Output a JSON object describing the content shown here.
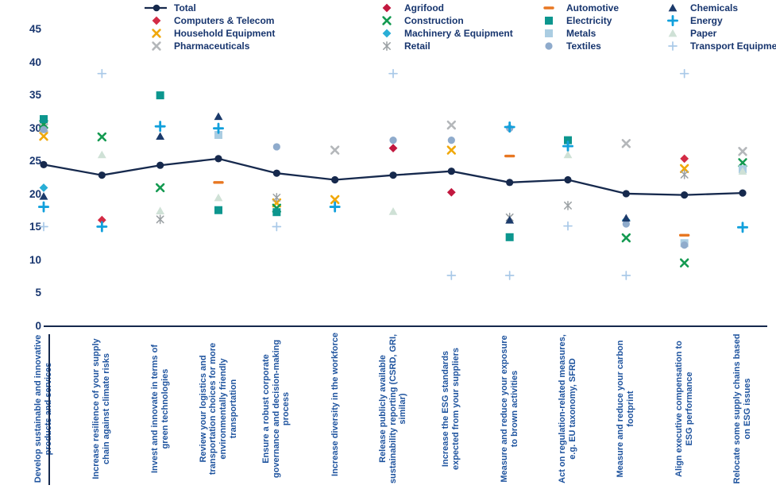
{
  "colors": {
    "axis": "#16294d",
    "tick_label": "#17356e",
    "category_label": "#1e539e",
    "legend_label": "#17356e"
  },
  "legend": {
    "columns": [
      [
        "total",
        "computers_telecom",
        "household_equipment",
        "pharmaceuticals"
      ],
      [
        "agrifood",
        "construction",
        "machinery_equipment",
        "retail"
      ],
      [
        "automotive",
        "electricity",
        "metals",
        "textiles"
      ],
      [
        "chemicals",
        "energy",
        "paper",
        "transport_equipment"
      ]
    ]
  },
  "chart_data": {
    "type": "scatter",
    "title": "",
    "xlabel": "",
    "ylabel": "",
    "grid": false,
    "legend_position": "top",
    "y_axis": {
      "min": 0,
      "max": 45,
      "tick_step": 5,
      "tick_labels": [
        0,
        5,
        10,
        15,
        20,
        25,
        30,
        35,
        40,
        45
      ]
    },
    "categories": [
      "Develop sustainable and innovative products and services",
      "Increase resilience of your supply chain against climate risks",
      "Invest and innovate in terms of green technologies",
      "Review your logistics and transportation choices for more environmentally friendly transportation",
      "Ensure a robust corporate governance and decision-making process",
      "Increase diversity in the workforce",
      "Release publicly available sustainability reporting (CSRD, GRI, similar)",
      "Increase the ESG standards expected from your suppliers",
      "Measure and reduce your exposure to brown activities",
      "Act on regulation-related measures, e.g. EU taxonomy, SFRD",
      "Measure and reduce your carbon footprint",
      "Align executive compensation to ESG performance",
      "Relocate some supply chains based on ESG issues"
    ],
    "series": [
      {
        "id": "total",
        "name": "Total",
        "marker": "line-circle",
        "color": "#16294d",
        "values": [
          24.5,
          22.9,
          24.4,
          25.4,
          23.2,
          22.2,
          22.9,
          23.5,
          21.8,
          22.2,
          20.1,
          19.9,
          20.2
        ]
      },
      {
        "id": "computers_telecom",
        "name": "Computers & Telecom",
        "marker": "diamond",
        "color": "#d32b45",
        "points": [
          [
            1,
            16.1
          ],
          [
            11,
            25.4
          ]
        ]
      },
      {
        "id": "agrifood",
        "name": "Agrifood",
        "marker": "diamond",
        "color": "#c2183f",
        "points": [
          [
            6,
            27.0
          ],
          [
            7,
            20.3
          ]
        ]
      },
      {
        "id": "household_equipment",
        "name": "Household Equipment",
        "marker": "x",
        "color": "#f0a80a",
        "points": [
          [
            0,
            28.8
          ],
          [
            4,
            18.7
          ],
          [
            5,
            19.2
          ],
          [
            7,
            26.7
          ],
          [
            11,
            23.9
          ]
        ]
      },
      {
        "id": "pharmaceuticals",
        "name": "Pharmaceuticals",
        "marker": "x",
        "color": "#b4b7ba",
        "points": [
          [
            0,
            30.1
          ],
          [
            5,
            26.7
          ],
          [
            7,
            30.5
          ],
          [
            10,
            27.7
          ],
          [
            12,
            26.5
          ]
        ]
      },
      {
        "id": "construction",
        "name": "Construction",
        "marker": "x",
        "color": "#149a51",
        "points": [
          [
            0,
            30.6
          ],
          [
            1,
            28.7
          ],
          [
            2,
            21.0
          ],
          [
            4,
            17.9
          ],
          [
            10,
            13.4
          ],
          [
            11,
            9.6
          ],
          [
            12,
            24.8
          ]
        ]
      },
      {
        "id": "machinery_equipment",
        "name": "Machinery & Equipment",
        "marker": "diamond",
        "color": "#29aed6",
        "points": [
          [
            0,
            21.0
          ],
          [
            10,
            16.1
          ]
        ]
      },
      {
        "id": "retail",
        "name": "Retail",
        "marker": "asterisk",
        "color": "#9ba1a4",
        "points": [
          [
            2,
            16.2
          ],
          [
            4,
            19.5
          ],
          [
            8,
            16.5
          ],
          [
            9,
            18.3
          ],
          [
            11,
            23.0
          ]
        ]
      },
      {
        "id": "automotive",
        "name": "Automotive",
        "marker": "dash",
        "color": "#e87722",
        "points": [
          [
            3,
            21.8
          ],
          [
            8,
            25.8
          ],
          [
            11,
            13.8
          ]
        ]
      },
      {
        "id": "electricity",
        "name": "Electricity",
        "marker": "square",
        "color": "#0c968e",
        "points": [
          [
            0,
            31.4
          ],
          [
            2,
            35.0
          ],
          [
            3,
            17.6
          ],
          [
            4,
            17.3
          ],
          [
            8,
            13.5
          ],
          [
            9,
            28.2
          ]
        ]
      },
      {
        "id": "metals",
        "name": "Metals",
        "marker": "square",
        "color": "#abcde2",
        "points": [
          [
            3,
            29.0
          ],
          [
            11,
            12.6
          ],
          [
            12,
            23.8
          ]
        ]
      },
      {
        "id": "textiles",
        "name": "Textiles",
        "marker": "circle",
        "color": "#8fabcc",
        "points": [
          [
            0,
            29.8
          ],
          [
            4,
            27.2
          ],
          [
            6,
            28.2
          ],
          [
            7,
            28.2
          ],
          [
            8,
            30.0
          ],
          [
            10,
            15.5
          ],
          [
            11,
            12.3
          ]
        ]
      },
      {
        "id": "chemicals",
        "name": "Chemicals",
        "marker": "triangle",
        "color": "#1b3a6b",
        "points": [
          [
            0,
            19.7
          ],
          [
            2,
            28.8
          ],
          [
            3,
            31.8
          ],
          [
            8,
            16.1
          ],
          [
            10,
            16.4
          ]
        ]
      },
      {
        "id": "energy",
        "name": "Energy",
        "marker": "plus",
        "color": "#11a0dc",
        "points": [
          [
            0,
            18.1
          ],
          [
            1,
            15.1
          ],
          [
            2,
            30.3
          ],
          [
            3,
            30.0
          ],
          [
            5,
            18.1
          ],
          [
            8,
            30.2
          ],
          [
            9,
            27.3
          ],
          [
            12,
            15.0
          ]
        ]
      },
      {
        "id": "paper",
        "name": "Paper",
        "marker": "triangle",
        "color": "#cfe1d6",
        "points": [
          [
            1,
            26.0
          ],
          [
            2,
            17.5
          ],
          [
            3,
            19.5
          ],
          [
            6,
            17.4
          ],
          [
            9,
            26.0
          ],
          [
            12,
            23.5
          ]
        ]
      },
      {
        "id": "transport_equipment",
        "name": "Transport Equipment",
        "marker": "plus-thin",
        "color": "#a9c9e8",
        "points": [
          [
            0,
            15.1
          ],
          [
            1,
            38.3
          ],
          [
            4,
            15.1
          ],
          [
            6,
            38.3
          ],
          [
            7,
            7.7
          ],
          [
            8,
            7.7
          ],
          [
            9,
            15.2
          ],
          [
            10,
            7.7
          ],
          [
            11,
            38.3
          ]
        ]
      }
    ]
  }
}
